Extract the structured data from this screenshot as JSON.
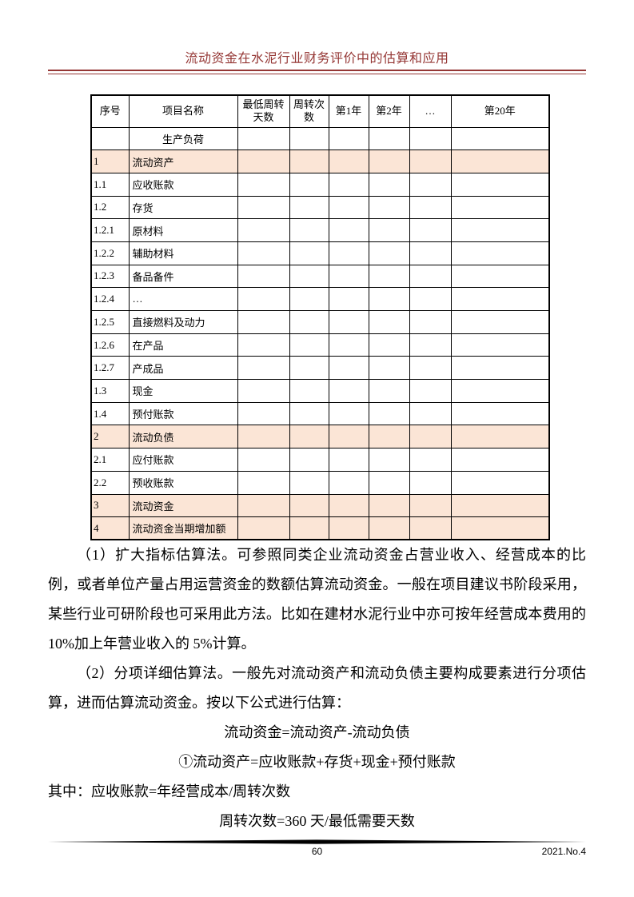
{
  "header": {
    "title": "流动资金在水泥行业财务评价中的估算和应用"
  },
  "table": {
    "columns": [
      "序号",
      "项目名称",
      "最低周转天数",
      "周转次数",
      "第1年",
      "第2年",
      "…",
      "第20年"
    ],
    "empty_value_columns": 6,
    "rows": [
      {
        "no": "",
        "name": "生产负荷",
        "highlight": false,
        "center": true
      },
      {
        "no": "1",
        "name": "流动资产",
        "highlight": true
      },
      {
        "no": "1.1",
        "name": "应收账款",
        "highlight": false
      },
      {
        "no": "1.2",
        "name": "存货",
        "highlight": false
      },
      {
        "no": "1.2.1",
        "name": "原材料",
        "highlight": false
      },
      {
        "no": "1.2.2",
        "name": "辅助材料",
        "highlight": false
      },
      {
        "no": "1.2.3",
        "name": "备品备件",
        "highlight": false
      },
      {
        "no": "1.2.4",
        "name": "…",
        "highlight": false
      },
      {
        "no": "1.2.5",
        "name": "直接燃料及动力",
        "highlight": false
      },
      {
        "no": "1.2.6",
        "name": "在产品",
        "highlight": false
      },
      {
        "no": "1.2.7",
        "name": "产成品",
        "highlight": false
      },
      {
        "no": "1.3",
        "name": "现金",
        "highlight": false
      },
      {
        "no": "1.4",
        "name": "预付账款",
        "highlight": false
      },
      {
        "no": "2",
        "name": "流动负债",
        "highlight": true
      },
      {
        "no": "2.1",
        "name": "应付账款",
        "highlight": false
      },
      {
        "no": "2.2",
        "name": "预收账款",
        "highlight": false
      },
      {
        "no": "3",
        "name": "流动资金",
        "highlight": true
      },
      {
        "no": "4",
        "name": "流动资金当期增加额",
        "highlight": true
      }
    ]
  },
  "paragraphs": [
    {
      "text": "（1）扩大指标估算法。可参照同类企业流动资金占营业收入、经营成本的比例，或者单位产量占用运营资金的数额估算流动资金。一般在项目建议书阶段采用，某些行业可研阶段也可采用此方法。比如在建材水泥行业中亦可按年经营成本费用的 10%加上年营业收入的 5%计算。"
    },
    {
      "text": "（2）分项详细估算法。一般先对流动资产和流动负债主要构成要素进行分项估算，进而估算流动资金。按以下公式进行估算："
    }
  ],
  "formulas": [
    {
      "align": "center",
      "text": "流动资金=流动资产-流动负债"
    },
    {
      "align": "center",
      "text": "①流动资产=应收账款+存货+现金+预付账款"
    },
    {
      "align": "left",
      "text": "其中：应收账款=年经营成本/周转次数"
    },
    {
      "align": "center",
      "text": "周转次数=360 天/最低需要天数"
    }
  ],
  "footer": {
    "page_number": "60",
    "issue": "2021.No.4"
  },
  "colors": {
    "accent": "#953735",
    "row_highlight": "#fbe5d6",
    "border": "#000000",
    "footer_bar": "#000000"
  }
}
